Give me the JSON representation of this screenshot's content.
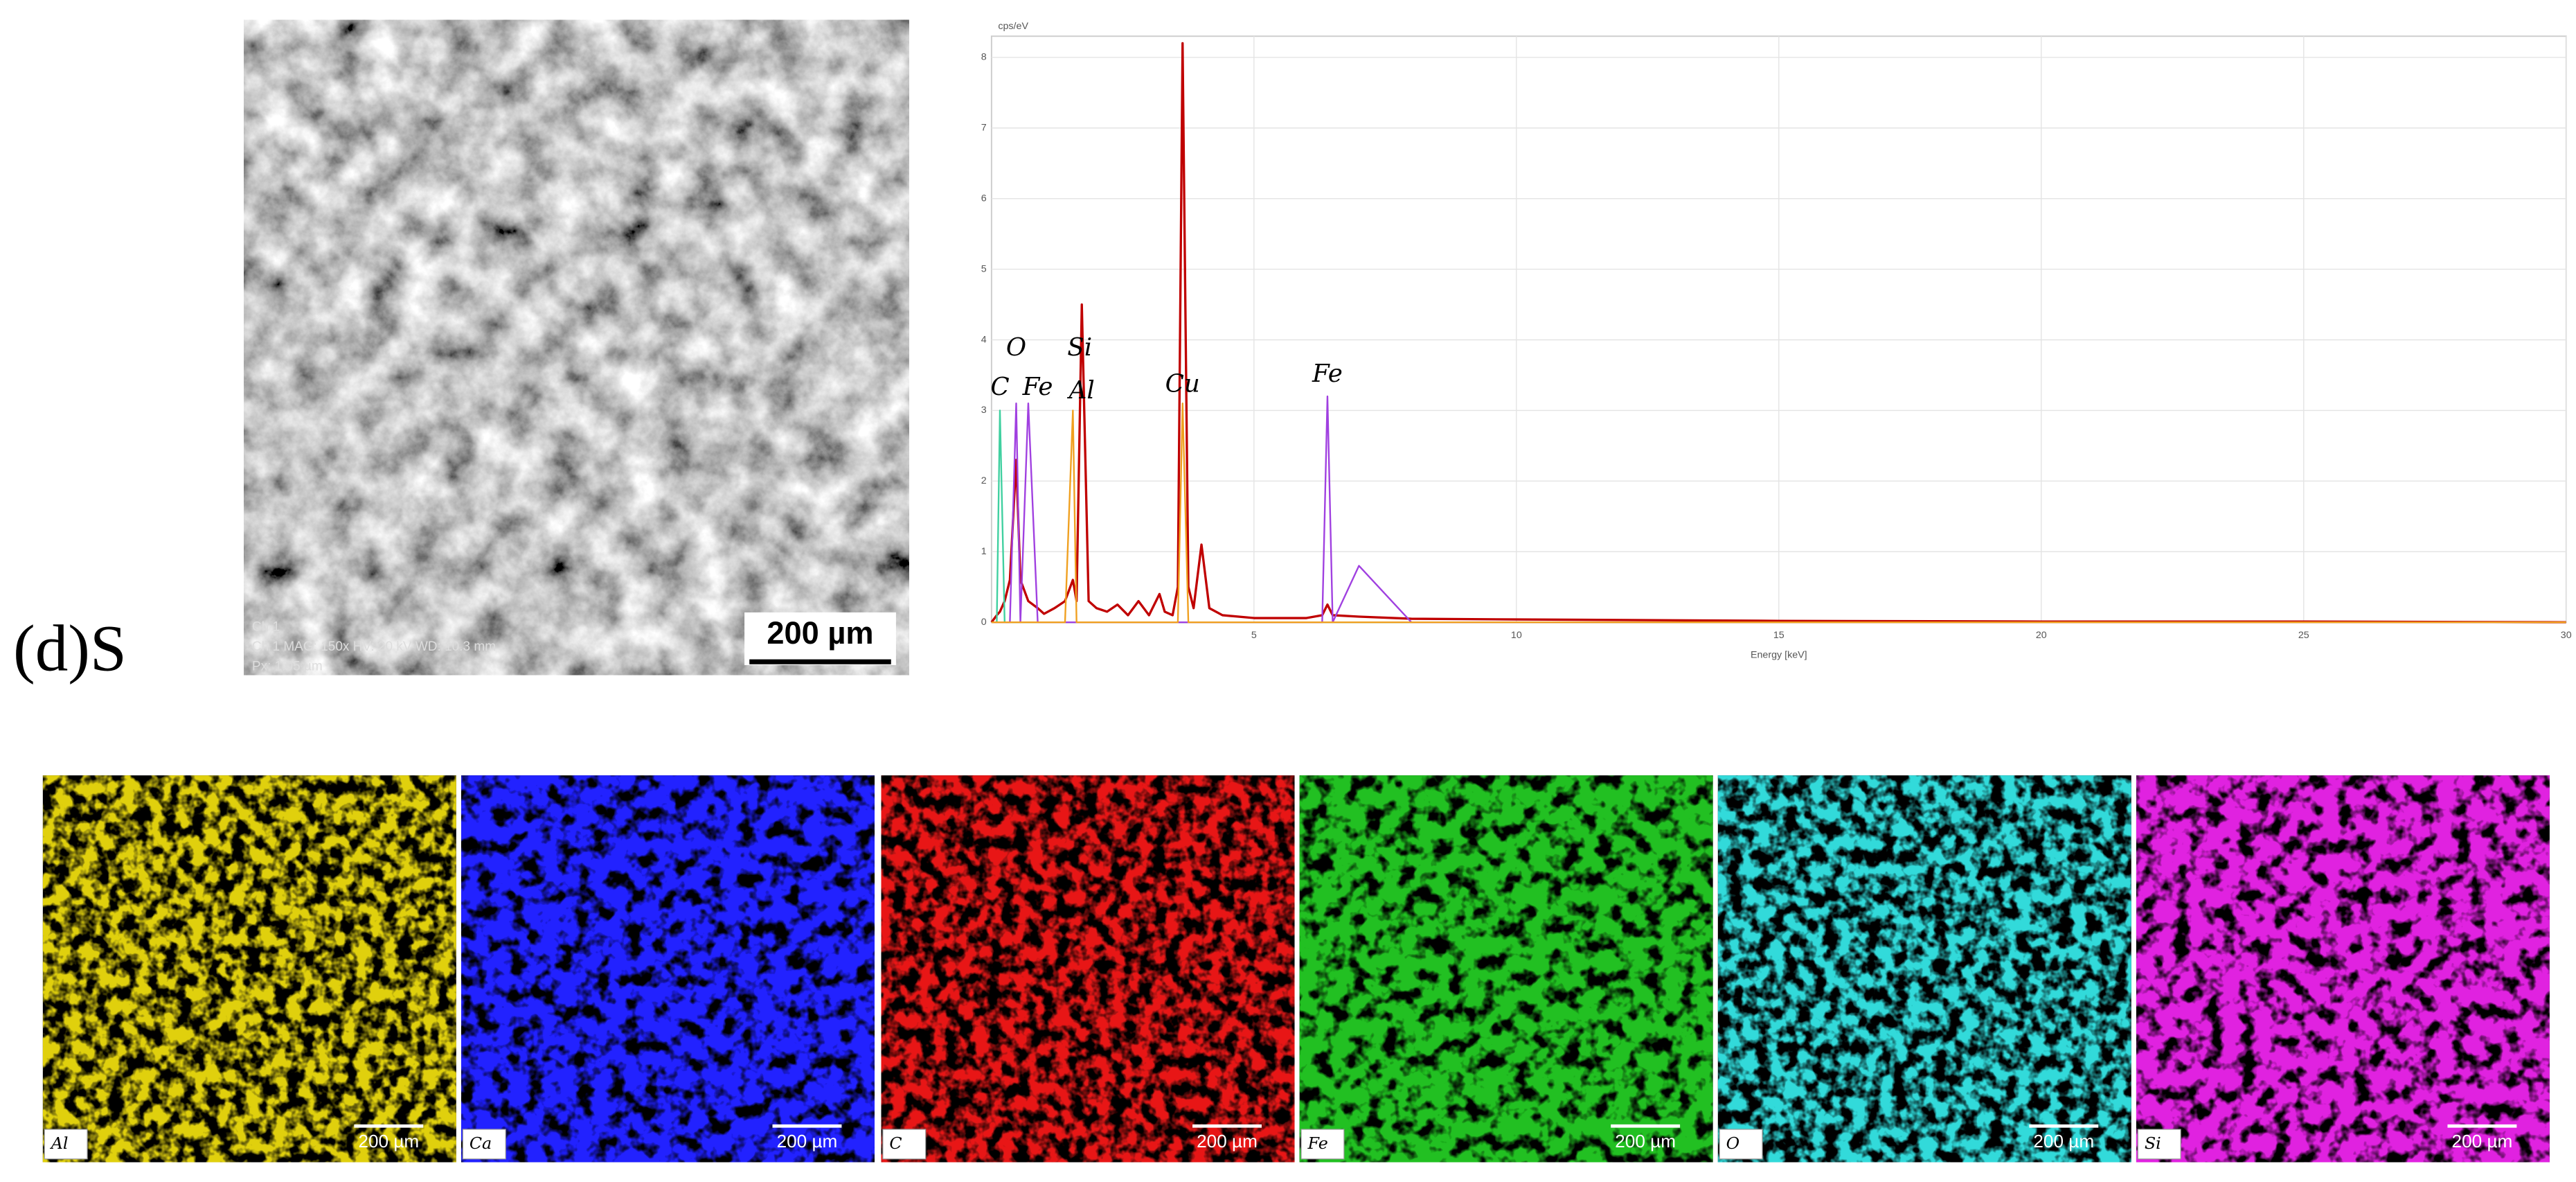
{
  "panel_label": "(d)S",
  "sem_image": {
    "scale_bar": "200 µm",
    "info": [
      "Ch 1",
      "Ch 1   MAG: 150x   HV: 20 kV   WD: 10.3 mm",
      "Px: 1.05 µm"
    ]
  },
  "chart_data": {
    "type": "line",
    "y_label": "cps/eV",
    "x_label": "Energy [keV]",
    "x": [
      0,
      0.1,
      0.16,
      0.25,
      0.35,
      0.47,
      0.55,
      0.7,
      0.88,
      1.0,
      1.2,
      1.4,
      1.55,
      1.62,
      1.72,
      1.85,
      2.0,
      2.2,
      2.4,
      2.6,
      2.8,
      3.0,
      3.2,
      3.3,
      3.45,
      3.55,
      3.64,
      3.75,
      3.85,
      4.0,
      4.15,
      4.4,
      5,
      6,
      6.3,
      6.4,
      6.5,
      7,
      8,
      10,
      15,
      20,
      25,
      30
    ],
    "series": [
      {
        "color": "#c00000",
        "values": [
          0,
          0.1,
          0.15,
          0.3,
          0.6,
          2.3,
          0.6,
          0.3,
          0.2,
          0.12,
          0.2,
          0.3,
          0.6,
          0.3,
          4.5,
          0.3,
          0.2,
          0.15,
          0.25,
          0.1,
          0.3,
          0.1,
          0.4,
          0.15,
          0.1,
          0.5,
          8.2,
          0.5,
          0.2,
          1.1,
          0.2,
          0.1,
          0.06,
          0.06,
          0.1,
          0.25,
          0.1,
          0.08,
          0.05,
          0.04,
          0.02,
          0.01,
          0.01,
          0
        ]
      },
      {
        "color": "#40d0a0",
        "values": [
          0,
          0,
          3.0,
          0,
          0,
          0,
          0,
          0,
          0,
          0,
          0,
          0,
          0,
          0,
          0,
          0,
          0,
          0,
          0,
          0,
          0,
          0,
          0,
          0,
          0,
          0,
          0,
          0,
          0,
          0,
          0,
          0,
          0,
          0,
          0,
          0,
          0,
          0,
          0,
          0,
          0,
          0,
          0,
          0
        ]
      },
      {
        "color": "#a040e0",
        "values": [
          0,
          0,
          0,
          0,
          0,
          3.1,
          0,
          3.1,
          0,
          0,
          0,
          0,
          0,
          0,
          0,
          0,
          0,
          0,
          0,
          0,
          0,
          0,
          0,
          0,
          0,
          0,
          0,
          0,
          0,
          0,
          0,
          0,
          0,
          0,
          0,
          3.2,
          0,
          0.8,
          0,
          0,
          0,
          0,
          0,
          0
        ]
      },
      {
        "color": "#f0a020",
        "values": [
          0,
          0,
          0,
          0,
          0,
          0,
          0,
          0,
          0,
          0,
          0,
          0,
          3.0,
          0,
          0,
          0,
          0,
          0,
          0,
          0,
          0,
          0,
          0,
          0,
          0,
          0,
          3.1,
          0,
          0,
          0,
          0,
          0,
          0,
          0,
          0,
          0,
          0,
          0,
          0,
          0,
          0,
          0,
          0,
          0
        ]
      }
    ],
    "annotations": [
      {
        "text": "C",
        "x": 0.16
      },
      {
        "text": "O",
        "x": 0.47
      },
      {
        "text": "Fe",
        "x": 0.88
      },
      {
        "text": "Si",
        "x": 1.68
      },
      {
        "text": "Al",
        "x": 1.72
      },
      {
        "text": "Cu",
        "x": 3.64
      },
      {
        "text": "Fe",
        "x": 6.4
      }
    ],
    "xlim": [
      0,
      30
    ],
    "ylim": [
      0,
      8.3
    ],
    "xticks": [
      5,
      10,
      15,
      20,
      25,
      30
    ],
    "yticks": [
      0,
      1,
      2,
      3,
      4,
      5,
      6,
      7,
      8
    ],
    "grid": true
  },
  "maps": [
    {
      "element": "Al",
      "scale_bar": "200 µm",
      "color": "#e0d010"
    },
    {
      "element": "Ca",
      "scale_bar": "200 µm",
      "color": "#2020ff"
    },
    {
      "element": "C",
      "scale_bar": "200 µm",
      "color": "#e81818"
    },
    {
      "element": "Fe",
      "scale_bar": "200 µm",
      "color": "#20c020"
    },
    {
      "element": "O",
      "scale_bar": "200 µm",
      "color": "#30dada"
    },
    {
      "element": "Si",
      "scale_bar": "200 µm",
      "color": "#e020e0"
    }
  ]
}
